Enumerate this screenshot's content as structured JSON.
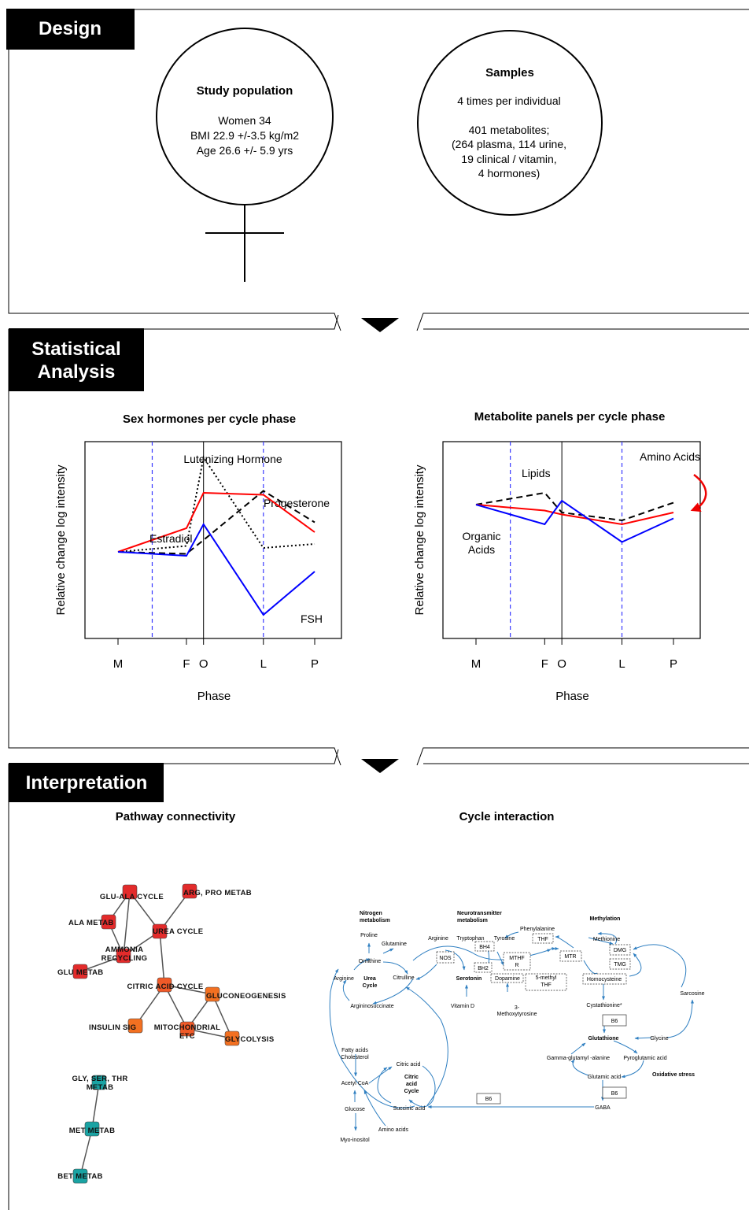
{
  "design": {
    "header": "Design",
    "population": {
      "title": "Study population",
      "lines": [
        "Women 34",
        "BMI 22.9 +/-3.5 kg/m2",
        "Age 26.6 +/- 5.9 yrs"
      ]
    },
    "samples": {
      "title": "Samples",
      "lines": [
        "4 times per individual",
        "",
        "401 metabolites;",
        "(264 plasma, 114 urine,",
        "19 clinical / vitamin,",
        "4 hormones)"
      ]
    }
  },
  "stats": {
    "header_lines": [
      "Statistical",
      "Analysis"
    ],
    "chart_data": [
      {
        "type": "line",
        "title": "Sex hormones per cycle phase",
        "xlabel": "Phase",
        "ylabel": "Relative change log intensity",
        "categories": [
          "M",
          "F",
          "O",
          "L",
          "P"
        ],
        "x": [
          0,
          4,
          5,
          8.5,
          11.5
        ],
        "ylim": [
          0,
          10
        ],
        "vlines_dashed": [
          2,
          8.5
        ],
        "vline_solid": 5,
        "series": [
          {
            "name": "Lutenizing Hormone",
            "style": "dotted",
            "color": "#000000",
            "x": [
              0,
              4,
              5,
              8.5,
              11.5
            ],
            "values": [
              4.4,
              4.7,
              9.2,
              4.6,
              4.8
            ]
          },
          {
            "name": "Progesterone",
            "style": "dashed",
            "color": "#000000",
            "x": [
              0,
              4,
              5,
              8.5,
              11.5
            ],
            "values": [
              4.4,
              4.3,
              5.0,
              7.5,
              5.9
            ]
          },
          {
            "name": "Estradiol",
            "style": "solid",
            "color": "#ff0000",
            "x": [
              0,
              4,
              5,
              8.5,
              11.5
            ],
            "values": [
              4.4,
              5.6,
              7.4,
              7.3,
              5.4
            ]
          },
          {
            "name": "FSH",
            "style": "solid",
            "color": "#0000ff",
            "x": [
              0,
              4,
              5,
              8.5,
              11.5
            ],
            "values": [
              4.4,
              4.2,
              5.8,
              1.2,
              3.4
            ]
          }
        ]
      },
      {
        "type": "line",
        "title": "Metabolite panels per cycle phase",
        "xlabel": "Phase",
        "ylabel": "Relative change log intensity",
        "categories": [
          "M",
          "F",
          "O",
          "L",
          "P"
        ],
        "x": [
          0,
          4,
          5,
          8.5,
          11.5
        ],
        "ylim": [
          0,
          10
        ],
        "vlines_dashed": [
          2,
          8.5
        ],
        "vline_solid": 5,
        "series": [
          {
            "name": "Lipids",
            "style": "dashed",
            "color": "#000000",
            "x": [
              0,
              4,
              5,
              8.5,
              11.5
            ],
            "values": [
              6.8,
              7.4,
              6.4,
              6.0,
              6.9
            ]
          },
          {
            "name": "Amino Acids",
            "style": "solid",
            "color": "#ff0000",
            "x": [
              0,
              4,
              5,
              8.5,
              11.5
            ],
            "values": [
              6.8,
              6.5,
              6.3,
              5.8,
              6.4
            ]
          },
          {
            "name": "Organic Acids",
            "style": "solid",
            "color": "#0000ff",
            "x": [
              0,
              4,
              5,
              8.5,
              11.5
            ],
            "values": [
              6.8,
              5.8,
              7.0,
              4.9,
              6.1
            ]
          }
        ]
      }
    ]
  },
  "interp": {
    "header": "Interpretation",
    "network": {
      "title": "Pathway connectivity",
      "nodes": [
        {
          "id": "gluala",
          "label": "GLU-ALA CYCLE",
          "color": "#e32b2b"
        },
        {
          "id": "arg",
          "label": "ARG, PRO METAB",
          "color": "#e32b2b"
        },
        {
          "id": "ala",
          "label": "ALA METAB",
          "color": "#e32b2b"
        },
        {
          "id": "urea",
          "label": "UREA CYCLE",
          "color": "#e32b2b"
        },
        {
          "id": "ammonia",
          "label": "AMMONIA RECYCLING",
          "label_lines": [
            "AMMONIA",
            "RECYCLING"
          ],
          "color": "#e32b2b"
        },
        {
          "id": "glu",
          "label": "GLU METAB",
          "color": "#e32b2b"
        },
        {
          "id": "citric",
          "label": "CITRIC ACID CYCLE",
          "color": "#f05a28"
        },
        {
          "id": "gluconeo",
          "label": "GLUCONEOGENESIS",
          "color": "#f37021"
        },
        {
          "id": "insulin",
          "label": "INSULIN SIG",
          "color": "#f37021"
        },
        {
          "id": "mito",
          "label": "MITOCHONDRIAL ETC",
          "label_lines": [
            "MITOCHONDRIAL",
            "ETC"
          ],
          "color": "#f05a28"
        },
        {
          "id": "glyco",
          "label": "GLYCOLYSIS",
          "color": "#f37021"
        },
        {
          "id": "glyser",
          "label": "GLY, SER, THR METAB",
          "label_lines": [
            "GLY, SER, THR",
            "METAB"
          ],
          "color": "#1aa3a3"
        },
        {
          "id": "met",
          "label": "MET METAB",
          "color": "#1aa3a3"
        },
        {
          "id": "bet",
          "label": "BET METAB",
          "color": "#1aa3a3"
        }
      ],
      "edges": [
        [
          "gluala",
          "urea"
        ],
        [
          "gluala",
          "ammonia"
        ],
        [
          "arg",
          "urea"
        ],
        [
          "ala",
          "ammonia"
        ],
        [
          "ala",
          "gluala"
        ],
        [
          "urea",
          "ammonia"
        ],
        [
          "urea",
          "citric"
        ],
        [
          "ammonia",
          "glu"
        ],
        [
          "citric",
          "gluconeo"
        ],
        [
          "citric",
          "insulin"
        ],
        [
          "citric",
          "mito"
        ],
        [
          "gluconeo",
          "glyco"
        ],
        [
          "mito",
          "glyco"
        ],
        [
          "mito",
          "gluconeo"
        ],
        [
          "glyser",
          "met"
        ],
        [
          "met",
          "bet"
        ]
      ]
    },
    "cycle": {
      "title": "Cycle interaction",
      "section_titles": {
        "nitrogen": [
          "Nitrogen",
          "metabolism"
        ],
        "neuro": [
          "Neurotransmitter",
          "metabolism"
        ],
        "methylation": "Methylation",
        "oxidative": "Oxidative stress"
      },
      "labels": {
        "proline": "Proline",
        "glutamine": "Glutamine",
        "ornithine": "Ornithine",
        "arginine_n": "Arginine",
        "urea_cycle": [
          "Urea",
          "Cycle"
        ],
        "citrulline": "Citrulline",
        "argininosuccinate": "Argininosuccinate",
        "arginine": "Arginine",
        "tryptophan": "Tryptophan",
        "nos": "NOS",
        "serotonin": "Serotonin",
        "vitamin_d": "Vitamin D",
        "tyrosine": "Tyrosine",
        "phenylalanine": "Phenylalanine",
        "bh4": "BH4",
        "bh2": "BH2",
        "thf": "THF",
        "mthfr": [
          "MTHF",
          "R"
        ],
        "dopamine": "Dopamine",
        "five_methyl_thf": [
          "5-methyl",
          "THF"
        ],
        "methoxytyrosine": [
          "3-",
          "Methoxytyrosine"
        ],
        "mtr": "MTR",
        "methionine": "Methionine",
        "dmg": "DMG",
        "tmg": "TMG",
        "homocysteine": "Homocysteine",
        "sarcosine": "Sarcosine",
        "cystathionine": "Cystathionine*",
        "b6_1": "B6",
        "glutathione": "Glutathione",
        "glycine": "Glycine",
        "gga": "Gamma-glutamyl -alanine",
        "pyroglutamic": "Pyroglutamic acid",
        "glutamic": "Glutamic acid",
        "b6_2": "B6",
        "gaba": "GABA",
        "b6_3": "B6",
        "fatty": [
          "Fatty acids",
          "Cholesterol"
        ],
        "acetyl": "Acetyl CoA",
        "citric_acid": "Citric acid",
        "citric_cycle": [
          "Citric",
          "acid",
          "Cycle"
        ],
        "succinic": "Succinic acid",
        "glucose": "Glucose",
        "amino": "Amino acids",
        "myo": "Myo-inositol"
      }
    }
  }
}
